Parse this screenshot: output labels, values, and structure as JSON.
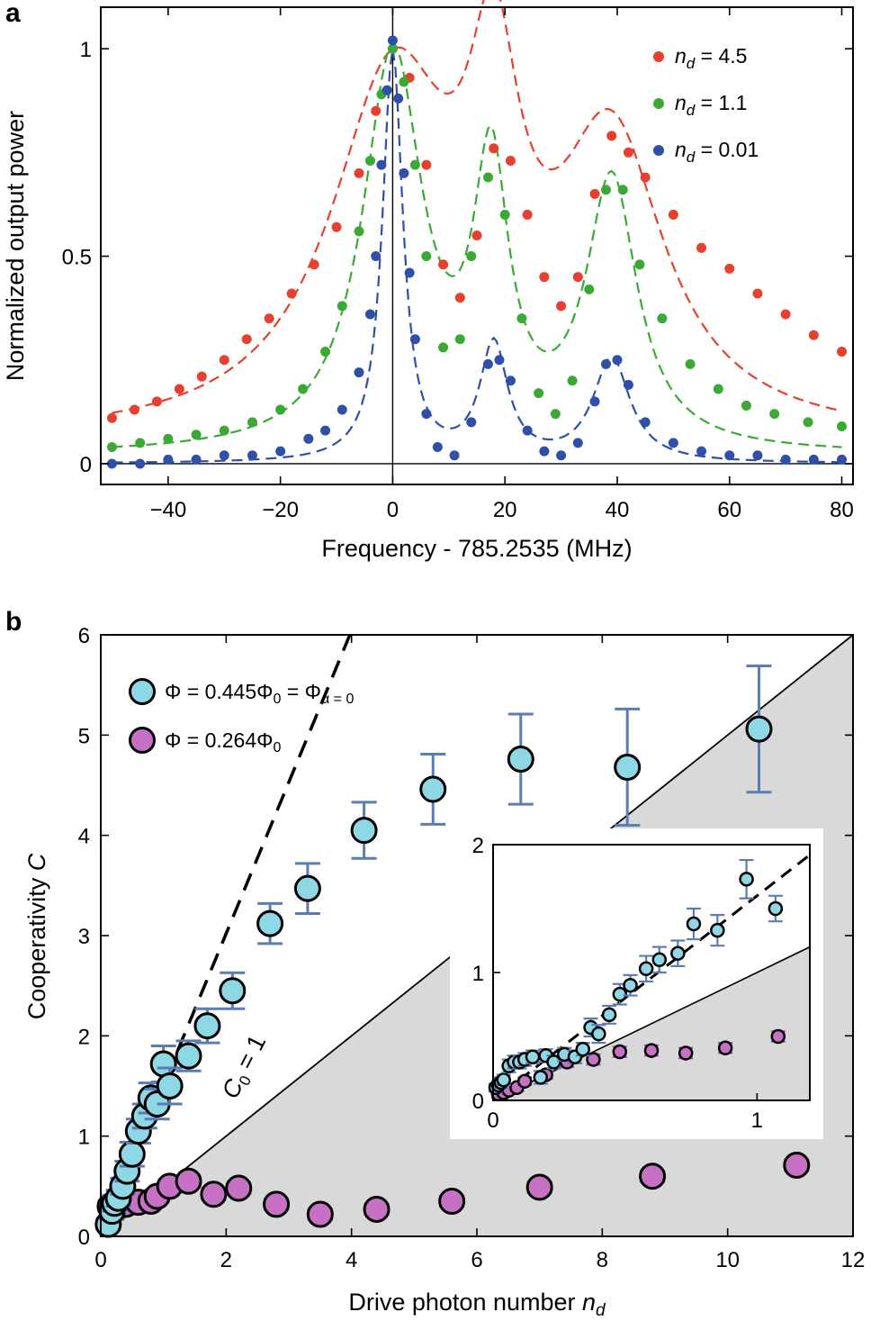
{
  "chart_data": [
    {
      "panel": "a",
      "type": "scatter",
      "title": "",
      "xlabel": "Frequency - 785.2535 (MHz)",
      "ylabel": "Normalized output power",
      "xlim": [
        -52,
        82
      ],
      "ylim": [
        -0.05,
        1.1
      ],
      "xticks": [
        -40,
        -20,
        0,
        20,
        40,
        60,
        80
      ],
      "xtick_labels": [
        "−40",
        "−20",
        "0",
        "20",
        "40",
        "60",
        "80"
      ],
      "yticks": [
        0,
        0.5,
        1
      ],
      "ytick_labels": [
        "0",
        "0.5",
        "1"
      ],
      "legend_position": "top-right",
      "series": [
        {
          "name": "n_d = 4.5",
          "legend_symbol": "n",
          "legend_sub": "d",
          "legend_value": " = 4.5",
          "color": "#e8402f",
          "model": {
            "amps": [
              0.84,
              0.65,
              0.67
            ],
            "centers": [
              0,
              18,
              39
            ],
            "hwhm": [
              13.5,
              5.5,
              11.5
            ],
            "base": 0.05
          },
          "x": [
            -50,
            -46,
            -42,
            -38,
            -34,
            -30,
            -26,
            -22,
            -18,
            -14,
            -10,
            -6,
            -3,
            0,
            3,
            6,
            9,
            12,
            15,
            18,
            21,
            24,
            27,
            30,
            33,
            36,
            39,
            42,
            45,
            50,
            55,
            60,
            65,
            70,
            75,
            80
          ],
          "y": [
            0.11,
            0.13,
            0.15,
            0.18,
            0.21,
            0.25,
            0.3,
            0.35,
            0.41,
            0.48,
            0.57,
            0.7,
            0.85,
            1.0,
            0.93,
            0.72,
            0.48,
            0.4,
            0.55,
            0.76,
            0.73,
            0.6,
            0.45,
            0.38,
            0.45,
            0.65,
            0.79,
            0.75,
            0.69,
            0.6,
            0.52,
            0.47,
            0.41,
            0.36,
            0.31,
            0.27
          ]
        },
        {
          "name": "n_d = 1.1",
          "legend_symbol": "n",
          "legend_sub": "d",
          "legend_value": " = 1.1",
          "color": "#3aaa35",
          "model": {
            "amps": [
              0.95,
              0.64,
              0.64
            ],
            "centers": [
              0,
              17.5,
              39
            ],
            "hwhm": [
              6.5,
              3.8,
              5.5
            ],
            "base": 0.02
          },
          "x": [
            -50,
            -45,
            -40,
            -35,
            -30,
            -25,
            -20,
            -16,
            -12,
            -9,
            -6,
            -4,
            -2,
            0,
            2,
            4,
            6,
            9,
            12,
            14,
            17,
            20,
            23,
            26,
            29,
            32,
            35,
            38,
            41,
            44,
            48,
            53,
            58,
            63,
            68,
            74,
            80
          ],
          "y": [
            0.04,
            0.05,
            0.06,
            0.07,
            0.08,
            0.1,
            0.13,
            0.18,
            0.27,
            0.38,
            0.56,
            0.73,
            0.89,
            1.0,
            0.92,
            0.72,
            0.5,
            0.28,
            0.3,
            0.5,
            0.69,
            0.6,
            0.35,
            0.17,
            0.12,
            0.2,
            0.42,
            0.66,
            0.66,
            0.48,
            0.35,
            0.24,
            0.18,
            0.14,
            0.12,
            0.1,
            0.09
          ]
        },
        {
          "name": "n_d = 0.01",
          "legend_symbol": "n",
          "legend_sub": "d",
          "legend_value": " = 0.01",
          "color": "#2f4fa8",
          "model": {
            "amps": [
              0.99,
              0.28,
              0.25
            ],
            "centers": [
              0,
              18,
              39
            ],
            "hwhm": [
              2.2,
              3.0,
              4.0
            ],
            "base": 0.0
          },
          "x": [
            -50,
            -45,
            -40,
            -35,
            -30,
            -25,
            -20,
            -15,
            -12,
            -9,
            -6,
            -4,
            -3,
            -2,
            -1,
            0,
            1,
            2,
            3,
            4,
            6,
            8,
            11,
            14,
            17,
            19,
            21,
            24,
            27,
            30,
            33,
            36,
            38,
            40,
            42,
            45,
            50,
            55,
            60,
            65,
            70,
            75,
            80
          ],
          "y": [
            0.0,
            0.0,
            0.01,
            0.01,
            0.02,
            0.02,
            0.03,
            0.06,
            0.08,
            0.13,
            0.22,
            0.36,
            0.5,
            0.72,
            0.9,
            1.02,
            0.88,
            0.7,
            0.46,
            0.3,
            0.12,
            0.04,
            0.02,
            0.1,
            0.24,
            0.25,
            0.2,
            0.08,
            0.03,
            0.02,
            0.05,
            0.15,
            0.24,
            0.25,
            0.19,
            0.1,
            0.05,
            0.03,
            0.02,
            0.02,
            0.01,
            0.01,
            0.01
          ]
        }
      ],
      "reference_lines": {
        "vertical_x": 0,
        "horizontal_y": 0
      }
    },
    {
      "panel": "b",
      "type": "scatter",
      "title": "",
      "xlabel_main": "Drive photon number ",
      "xlabel_symbol": "n",
      "xlabel_sub": "d",
      "ylabel_main": "Cooperativity ",
      "ylabel_symbol": "C",
      "xlim": [
        0,
        12
      ],
      "ylim": [
        0,
        6
      ],
      "xticks": [
        0,
        2,
        4,
        6,
        8,
        10,
        12
      ],
      "yticks": [
        0,
        1,
        2,
        3,
        4,
        5,
        6
      ],
      "shaded_region": "below line C = 0.5 n_d",
      "lines": {
        "solid_slope": 0.5,
        "dashed_slope": 1.51,
        "solid_label": "C₀ = 1",
        "solid_label_main": "C",
        "solid_label_sub": "0",
        "solid_label_rest": " = 1"
      },
      "legend_position": "top-left",
      "series": [
        {
          "name": "Φ = 0.445Φ₀ = Φα = 0",
          "legend_main": "Φ = 0.445Φ",
          "legend_sub1": "0",
          "legend_mid": " = Φ",
          "legend_sub2": "α = 0",
          "color": "#8ed8e6",
          "x": [
            0.12,
            0.18,
            0.22,
            0.28,
            0.35,
            0.42,
            0.5,
            0.6,
            0.7,
            0.8,
            0.9,
            1.0,
            1.1,
            1.4,
            1.7,
            2.1,
            2.7,
            3.3,
            4.2,
            5.3,
            6.7,
            8.4,
            10.5
          ],
          "y": [
            0.12,
            0.25,
            0.33,
            0.38,
            0.5,
            0.65,
            0.82,
            1.05,
            1.2,
            1.38,
            1.32,
            1.72,
            1.5,
            1.8,
            2.1,
            2.45,
            3.12,
            3.47,
            4.05,
            4.46,
            4.76,
            4.68,
            5.06
          ],
          "err": [
            0.05,
            0.08,
            0.08,
            0.08,
            0.08,
            0.1,
            0.12,
            0.12,
            0.12,
            0.15,
            0.15,
            0.18,
            0.18,
            0.15,
            0.17,
            0.18,
            0.2,
            0.25,
            0.28,
            0.35,
            0.45,
            0.58,
            0.63
          ]
        },
        {
          "name": "Φ = 0.264Φ₀",
          "legend_main": "Φ = 0.264Φ",
          "legend_sub1": "0",
          "color": "#c671c4",
          "x": [
            0.15,
            0.25,
            0.4,
            0.6,
            0.8,
            0.9,
            1.1,
            1.4,
            1.8,
            2.2,
            2.8,
            3.5,
            4.4,
            5.6,
            7.0,
            8.8,
            11.1
          ],
          "y": [
            0.3,
            0.3,
            0.32,
            0.34,
            0.35,
            0.4,
            0.5,
            0.55,
            0.42,
            0.48,
            0.32,
            0.22,
            0.27,
            0.35,
            0.49,
            0.6,
            0.71
          ],
          "err": [
            0.05,
            0.05,
            0.05,
            0.05,
            0.05,
            0.05,
            0.05,
            0.05,
            0.05,
            0.05,
            0.05,
            0.05,
            0.05,
            0.05,
            0.05,
            0.05,
            0.05
          ]
        }
      ],
      "inset": {
        "xlim": [
          0,
          1.2
        ],
        "ylim": [
          0,
          2
        ],
        "xticks": [
          0,
          1
        ],
        "yticks": [
          0,
          1,
          2
        ],
        "solid_slope": 1.0,
        "dashed": {
          "slope": 1.6,
          "intercept": 0.0
        },
        "series": [
          {
            "name": "cyan",
            "color": "#8ed8e6",
            "x": [
              0.01,
              0.02,
              0.03,
              0.04,
              0.06,
              0.08,
              0.1,
              0.12,
              0.15,
              0.18,
              0.2,
              0.23,
              0.27,
              0.31,
              0.34,
              0.37,
              0.4,
              0.44,
              0.48,
              0.52,
              0.58,
              0.63,
              0.7,
              0.76,
              0.85,
              0.96,
              1.07
            ],
            "y": [
              0.1,
              0.12,
              0.14,
              0.16,
              0.27,
              0.3,
              0.3,
              0.32,
              0.34,
              0.18,
              0.35,
              0.3,
              0.36,
              0.34,
              0.4,
              0.57,
              0.52,
              0.67,
              0.83,
              0.9,
              1.03,
              1.1,
              1.15,
              1.38,
              1.33,
              1.73,
              1.5
            ],
            "err": [
              0.03,
              0.03,
              0.04,
              0.04,
              0.05,
              0.05,
              0.05,
              0.05,
              0.05,
              0.05,
              0.05,
              0.05,
              0.05,
              0.05,
              0.05,
              0.07,
              0.07,
              0.07,
              0.08,
              0.08,
              0.1,
              0.1,
              0.1,
              0.12,
              0.12,
              0.15,
              0.1
            ]
          },
          {
            "name": "magenta",
            "color": "#c671c4",
            "x": [
              0.02,
              0.04,
              0.06,
              0.09,
              0.12,
              0.2,
              0.28,
              0.38,
              0.48,
              0.6,
              0.73,
              0.88,
              1.08
            ],
            "y": [
              0.05,
              0.06,
              0.08,
              0.1,
              0.15,
              0.2,
              0.3,
              0.32,
              0.38,
              0.39,
              0.37,
              0.41,
              0.5
            ],
            "err": [
              0.03,
              0.03,
              0.03,
              0.03,
              0.03,
              0.03,
              0.04,
              0.04,
              0.04,
              0.04,
              0.04,
              0.04,
              0.04
            ]
          }
        ]
      }
    }
  ]
}
